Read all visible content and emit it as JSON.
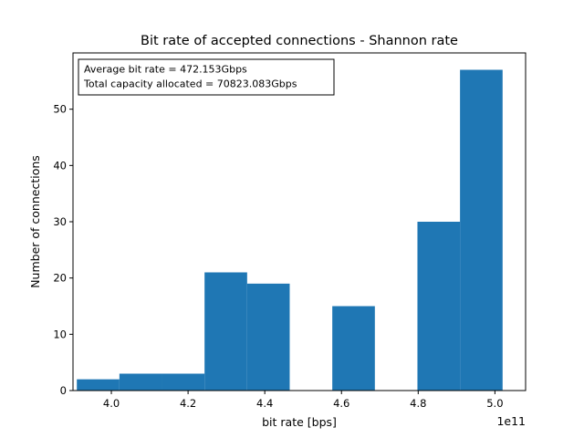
{
  "chart_data": {
    "type": "bar",
    "title": "Bit rate of accepted connections - Shannon rate",
    "xlabel": "bit rate [bps]",
    "ylabel": "Number of connections",
    "x_offset_label": "1e11",
    "x_scale": 100000000000.0,
    "xlim": [
      3.9,
      5.08
    ],
    "ylim": [
      0,
      60
    ],
    "x_ticks": [
      4.0,
      4.2,
      4.4,
      4.6,
      4.8,
      5.0
    ],
    "x_tick_labels": [
      "4.0",
      "4.2",
      "4.4",
      "4.6",
      "4.8",
      "5.0"
    ],
    "y_ticks": [
      0,
      10,
      20,
      30,
      40,
      50
    ],
    "y_tick_labels": [
      "0",
      "10",
      "20",
      "30",
      "40",
      "50"
    ],
    "grid": false,
    "bar_color": "#1f77b4",
    "bins": [
      {
        "x0": 3.91,
        "x1": 4.021,
        "count": 2
      },
      {
        "x0": 4.021,
        "x1": 4.132,
        "count": 3
      },
      {
        "x0": 4.132,
        "x1": 4.243,
        "count": 3
      },
      {
        "x0": 4.243,
        "x1": 4.354,
        "count": 21
      },
      {
        "x0": 4.354,
        "x1": 4.465,
        "count": 19
      },
      {
        "x0": 4.465,
        "x1": 4.576,
        "count": 0
      },
      {
        "x0": 4.576,
        "x1": 4.687,
        "count": 15
      },
      {
        "x0": 4.687,
        "x1": 4.798,
        "count": 0
      },
      {
        "x0": 4.798,
        "x1": 4.909,
        "count": 30
      },
      {
        "x0": 4.909,
        "x1": 5.02,
        "count": 57
      }
    ],
    "annotation": {
      "line1": "Average bit rate = 472.153Gbps",
      "line2": "Total capacity allocated = 70823.083Gbps"
    }
  }
}
